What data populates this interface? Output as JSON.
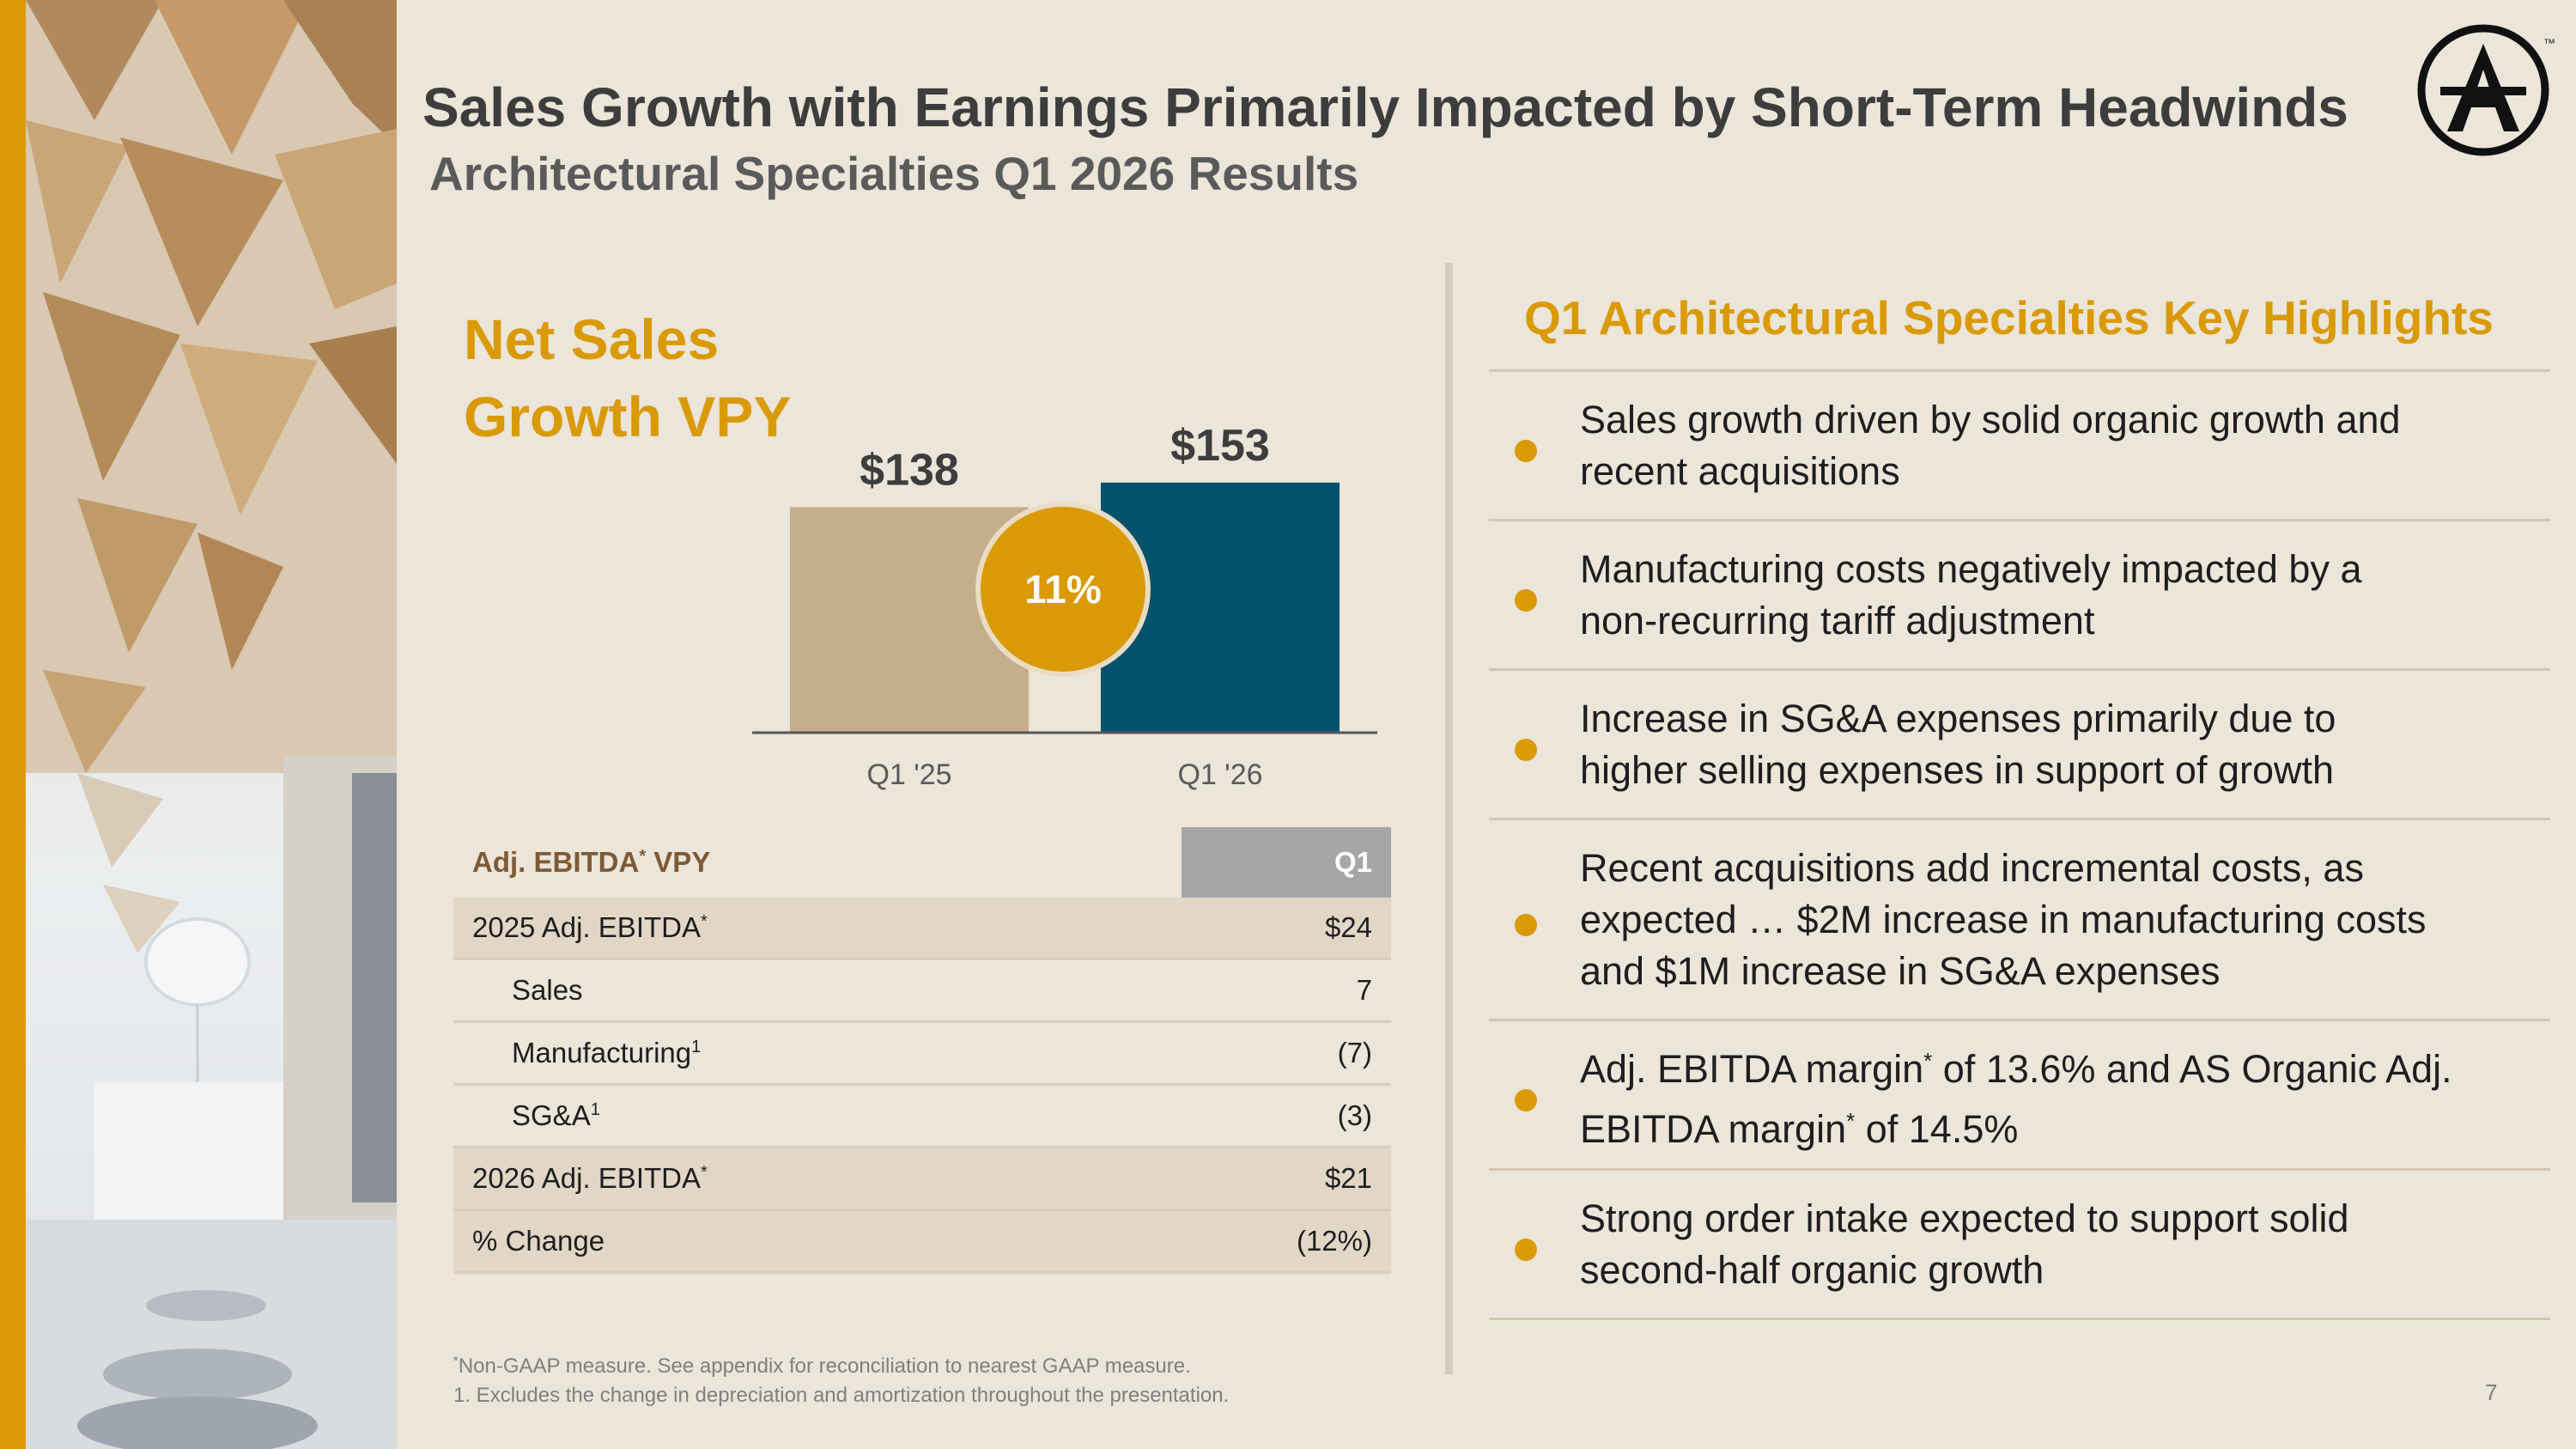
{
  "header": {
    "title": "Sales Growth with Earnings Primarily Impacted by Short-Term Headwinds",
    "subtitle": "Architectural Specialties Q1 2026 Results"
  },
  "logo": {
    "icon": "armstrong-a-logo-icon",
    "mark": "™"
  },
  "net_sales": {
    "title_line1": "Net Sales",
    "title_line2": "Growth VPY",
    "growth_badge": "11%"
  },
  "chart_data": {
    "type": "bar",
    "categories": [
      "Q1 '25",
      "Q1 '26"
    ],
    "values": [
      138,
      153
    ],
    "value_labels": [
      "$138",
      "$153"
    ],
    "colors": [
      "#c4ae8c",
      "#03526d"
    ],
    "ylim": [
      0,
      175
    ],
    "grid": false,
    "legend": "none"
  },
  "ebitda_table": {
    "header_label": "Adj. EBITDA",
    "header_sup": "*",
    "header_suffix": " VPY",
    "column": "Q1",
    "rows": [
      {
        "label": "2025 Adj. EBITDA",
        "sup": "*",
        "value": "$24"
      },
      {
        "label": "Sales",
        "sup": "",
        "value": "7"
      },
      {
        "label": "Manufacturing",
        "sup": "1",
        "value": "(7)"
      },
      {
        "label": "SG&A",
        "sup": "1",
        "value": "(3)"
      },
      {
        "label": "2026 Adj. EBITDA",
        "sup": "*",
        "value": "$21"
      },
      {
        "label": "% Change",
        "sup": "",
        "value": "(12%)"
      }
    ]
  },
  "footnotes": {
    "note1_sup": "*",
    "note1": "Non-GAAP measure. See appendix for reconciliation to nearest GAAP measure.",
    "note2": "1. Excludes the change in depreciation and amortization throughout the presentation."
  },
  "highlights": {
    "title": "Q1 Architectural Specialties Key Highlights",
    "items": [
      {
        "line1": "Sales growth driven by solid organic growth and",
        "line2": "recent acquisitions"
      },
      {
        "line1": "Manufacturing costs negatively impacted by a",
        "line2": "non-recurring tariff adjustment"
      },
      {
        "line1": "Increase in SG&A expenses primarily due to",
        "line2": "higher selling expenses in support of growth"
      },
      {
        "line1": "Recent acquisitions add incremental costs, as",
        "line2": "expected … $2M increase in manufacturing costs",
        "line3": "and $1M increase in SG&A expenses"
      },
      {
        "l1a": "Adj. EBITDA margin",
        "l1sup": "*",
        "l1b": " of 13.6% and AS Organic Adj.",
        "l2a": "EBITDA margin",
        "l2sup": "*",
        "l2b": " of 14.5%"
      },
      {
        "line1": "Strong order intake expected to support solid",
        "line2": "second-half organic growth"
      }
    ]
  },
  "page_number": "7"
}
